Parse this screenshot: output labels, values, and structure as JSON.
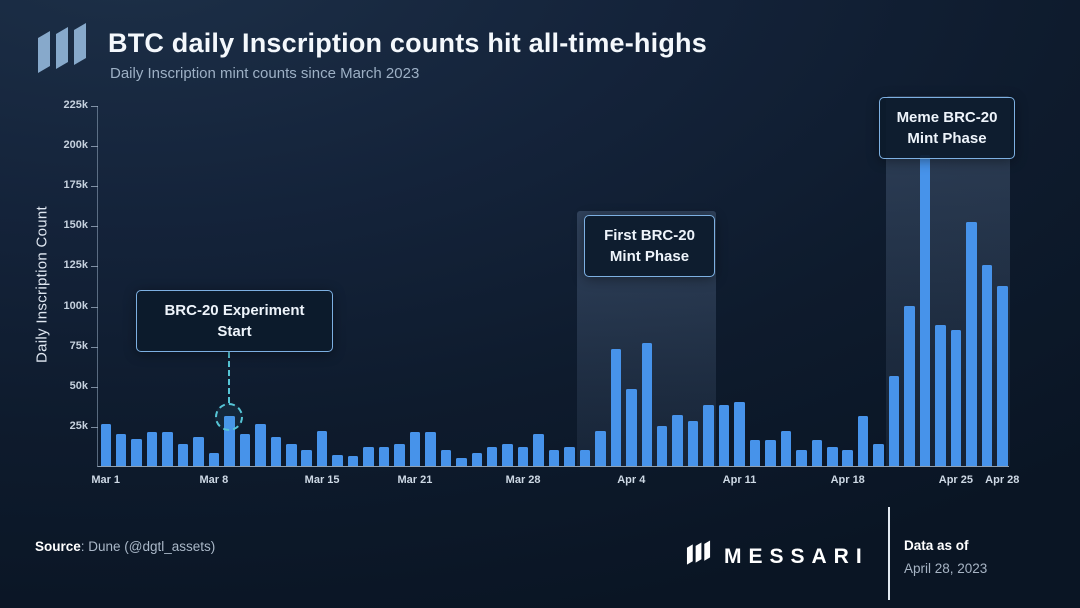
{
  "header": {
    "title": "BTC daily Inscription counts hit all-time-highs",
    "subtitle": "Daily Inscription mint counts since March 2023"
  },
  "footer": {
    "source_label": "Source",
    "source_value": ": Dune (@dgtl_assets)",
    "brand": "MESSARI",
    "data_as_of_label": "Data as of",
    "data_as_of_date": "April 28, 2023"
  },
  "chart_data": {
    "type": "bar",
    "title": "BTC daily Inscription counts hit all-time-highs",
    "subtitle": "Daily Inscription mint counts since March 2023",
    "xlabel": "",
    "ylabel": "Daily Inscription Count",
    "ylim": [
      0,
      225000
    ],
    "grid": false,
    "x": [
      "Mar 1",
      "Mar 2",
      "Mar 3",
      "Mar 4",
      "Mar 5",
      "Mar 6",
      "Mar 7",
      "Mar 8",
      "Mar 9",
      "Mar 10",
      "Mar 11",
      "Mar 12",
      "Mar 13",
      "Mar 14",
      "Mar 15",
      "Mar 16",
      "Mar 17",
      "Mar 18",
      "Mar 19",
      "Mar 20",
      "Mar 21",
      "Mar 22",
      "Mar 23",
      "Mar 24",
      "Mar 25",
      "Mar 26",
      "Mar 27",
      "Mar 28",
      "Mar 29",
      "Mar 30",
      "Mar 31",
      "Apr 1",
      "Apr 2",
      "Apr 3",
      "Apr 4",
      "Apr 5",
      "Apr 6",
      "Apr 7",
      "Apr 8",
      "Apr 9",
      "Apr 10",
      "Apr 11",
      "Apr 12",
      "Apr 13",
      "Apr 14",
      "Apr 15",
      "Apr 16",
      "Apr 17",
      "Apr 18",
      "Apr 19",
      "Apr 20",
      "Apr 21",
      "Apr 22",
      "Apr 23",
      "Apr 24",
      "Apr 25",
      "Apr 26",
      "Apr 27",
      "Apr 28"
    ],
    "values": [
      26000,
      20000,
      17000,
      21000,
      21000,
      14000,
      18000,
      8000,
      31000,
      20000,
      26000,
      18000,
      14000,
      10000,
      22000,
      7000,
      6000,
      12000,
      12000,
      14000,
      21000,
      21000,
      10000,
      5000,
      8000,
      12000,
      14000,
      12000,
      20000,
      10000,
      12000,
      10000,
      22000,
      73000,
      48000,
      77000,
      25000,
      32000,
      28000,
      38000,
      38000,
      40000,
      16000,
      16000,
      22000,
      10000,
      16000,
      12000,
      10000,
      31000,
      14000,
      56000,
      100000,
      194000,
      88000,
      85000,
      152000,
      125000,
      112000
    ],
    "y_ticks": [
      {
        "label": "225k",
        "value": 225000
      },
      {
        "label": "200k",
        "value": 200000
      },
      {
        "label": "175k",
        "value": 175000
      },
      {
        "label": "150k",
        "value": 150000
      },
      {
        "label": "125k",
        "value": 125000
      },
      {
        "label": "100k",
        "value": 100000
      },
      {
        "label": "75k",
        "value": 75000
      },
      {
        "label": "50k",
        "value": 50000
      },
      {
        "label": "25k",
        "value": 25000
      }
    ],
    "x_ticks": [
      {
        "label": "Mar 1",
        "index": 0
      },
      {
        "label": "Mar 8",
        "index": 7
      },
      {
        "label": "Mar 15",
        "index": 14
      },
      {
        "label": "Mar 21",
        "index": 20
      },
      {
        "label": "Mar 28",
        "index": 27
      },
      {
        "label": "Apr 4",
        "index": 34
      },
      {
        "label": "Apr 11",
        "index": 41
      },
      {
        "label": "Apr 18",
        "index": 48
      },
      {
        "label": "Apr 25",
        "index": 55
      },
      {
        "label": "Apr 28",
        "index": 58
      }
    ],
    "phases": [
      {
        "id": "first-brc20",
        "label": "First BRC-20 Mint Phase",
        "start_index": 31,
        "end_index": 39
      },
      {
        "id": "meme-brc20",
        "label": "Meme BRC-20 Mint Phase",
        "start_index": 51,
        "end_index": 58
      }
    ],
    "marker": {
      "index": 8,
      "label": "BRC-20 Experiment Start"
    },
    "annotations": {
      "experiment": "BRC-20 Experiment\nStart",
      "first_phase": "First BRC-20\nMint Phase",
      "meme_phase": "Meme BRC-20\nMint Phase"
    },
    "colors": {
      "bar": "#4793ea",
      "accent": "#7db0e2",
      "teal": "#56c5d6",
      "background": "#0e1c30"
    }
  }
}
